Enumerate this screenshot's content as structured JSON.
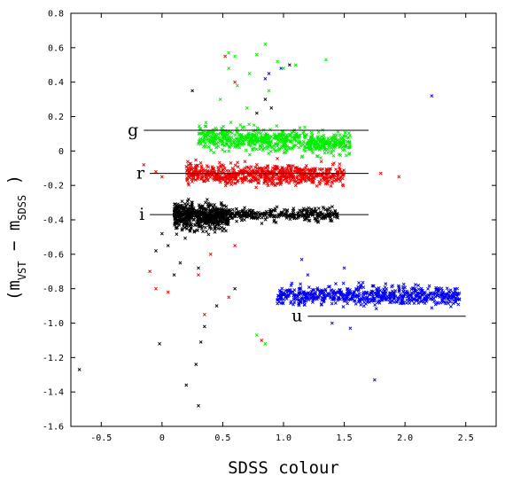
{
  "chart_data": {
    "type": "scatter",
    "title": "",
    "xlabel": "SDSS colour",
    "ylabel_parts": {
      "open": "(m",
      "sub1": "VST",
      "minus": " − m",
      "sub2": "SDSS",
      "close": " )"
    },
    "xlim": [
      -0.75,
      2.75
    ],
    "ylim": [
      -1.6,
      0.8
    ],
    "x_ticks": [
      -0.5,
      0.0,
      0.5,
      1.0,
      1.5,
      2.0,
      2.5
    ],
    "x_tick_labels": [
      "-0.5",
      "0",
      "0.5",
      "1.0",
      "1.5",
      "2.0",
      "2.5"
    ],
    "y_ticks": [
      0.8,
      0.6,
      0.4,
      0.2,
      0,
      -0.2,
      -0.4,
      -0.6,
      -0.8,
      -1.0,
      -1.2,
      -1.4,
      -1.6
    ],
    "y_tick_labels": [
      "0.8",
      "0.6",
      "0.4",
      "0.2",
      "0",
      "-0.2",
      "-0.4",
      "-0.6",
      "-0.8",
      "-1.0",
      "-1.2",
      "-1.4",
      "-1.6"
    ],
    "grid": false,
    "marker": "x",
    "series": [
      {
        "label": "g",
        "color": "#00ee00",
        "ref_line": {
          "x": [
            -0.15,
            1.7
          ],
          "y": 0.12
        },
        "core": {
          "x_range": [
            0.3,
            1.55
          ],
          "y_center": 0.08,
          "y_spread": 0.045,
          "count": 700,
          "slope": -0.03
        },
        "outliers": [
          [
            0.55,
            0.48
          ],
          [
            0.62,
            0.38
          ],
          [
            0.7,
            0.25
          ],
          [
            0.85,
            0.62
          ],
          [
            0.78,
            0.56
          ],
          [
            0.95,
            0.52
          ],
          [
            1.1,
            0.5
          ],
          [
            0.6,
            0.55
          ],
          [
            1.35,
            0.53
          ],
          [
            1.0,
            0.48
          ],
          [
            0.88,
            0.35
          ],
          [
            0.72,
            0.45
          ],
          [
            0.48,
            0.3
          ],
          [
            0.78,
            -1.07
          ],
          [
            0.85,
            -1.12
          ],
          [
            0.55,
            0.57
          ]
        ]
      },
      {
        "label": "r",
        "color": "#ee0000",
        "ref_line": {
          "x": [
            -0.1,
            1.7
          ],
          "y": -0.13
        },
        "core": {
          "x_range": [
            0.2,
            1.5
          ],
          "y_center": -0.13,
          "y_spread": 0.04,
          "count": 700,
          "slope": -0.01
        },
        "outliers": [
          [
            -0.15,
            -0.08
          ],
          [
            -0.05,
            -0.12
          ],
          [
            0.0,
            -0.15
          ],
          [
            1.8,
            -0.13
          ],
          [
            1.95,
            -0.15
          ],
          [
            -0.1,
            -0.7
          ],
          [
            -0.05,
            -0.8
          ],
          [
            0.55,
            -0.85
          ],
          [
            0.35,
            -0.95
          ],
          [
            0.6,
            -0.55
          ],
          [
            0.52,
            0.55
          ],
          [
            0.4,
            -0.6
          ],
          [
            0.6,
            0.4
          ],
          [
            0.82,
            -1.1
          ],
          [
            0.05,
            -0.82
          ],
          [
            0.3,
            -0.72
          ]
        ]
      },
      {
        "label": "i",
        "color": "#000000",
        "ref_line": {
          "x": [
            -0.1,
            1.7
          ],
          "y": -0.37
        },
        "core": {
          "x_range": [
            0.1,
            0.55
          ],
          "y_center": -0.38,
          "y_spread": 0.05,
          "count": 600,
          "slope": 0.0
        },
        "tail": {
          "x_range": [
            0.55,
            1.45
          ],
          "y_center": -0.37,
          "y_spread": 0.025,
          "count": 300
        },
        "outliers": [
          [
            -0.68,
            -1.27
          ],
          [
            -0.02,
            -1.12
          ],
          [
            0.1,
            -0.72
          ],
          [
            0.2,
            -1.36
          ],
          [
            0.28,
            -1.24
          ],
          [
            0.3,
            -1.48
          ],
          [
            0.32,
            -1.11
          ],
          [
            0.35,
            -1.02
          ],
          [
            0.45,
            -0.9
          ],
          [
            0.25,
            0.35
          ],
          [
            0.85,
            0.3
          ],
          [
            0.78,
            0.22
          ],
          [
            0.9,
            0.25
          ],
          [
            1.05,
            0.5
          ],
          [
            0.05,
            -0.55
          ],
          [
            0.15,
            -0.65
          ],
          [
            0.0,
            -0.48
          ],
          [
            -0.05,
            -0.58
          ],
          [
            0.6,
            -0.8
          ],
          [
            0.3,
            -0.68
          ]
        ]
      },
      {
        "label": "u",
        "color": "#0000ee",
        "ref_line": {
          "x": [
            1.2,
            2.5
          ],
          "y": -0.96
        },
        "core": {
          "x_range": [
            0.95,
            2.45
          ],
          "y_center": -0.84,
          "y_spread": 0.04,
          "count": 650,
          "slope": 0.0
        },
        "outliers": [
          [
            2.22,
            0.32
          ],
          [
            1.75,
            -1.33
          ],
          [
            1.55,
            -1.03
          ],
          [
            1.4,
            -1.0
          ],
          [
            0.85,
            0.42
          ],
          [
            0.98,
            0.48
          ],
          [
            1.15,
            -0.63
          ],
          [
            1.5,
            -0.68
          ],
          [
            1.2,
            -0.72
          ],
          [
            0.88,
            0.45
          ]
        ]
      }
    ]
  }
}
